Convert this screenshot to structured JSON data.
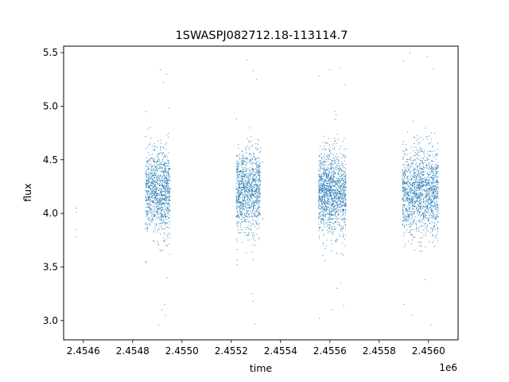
{
  "chart_data": {
    "type": "scatter",
    "title": "1SWASPJ082712.18-113114.7",
    "xlabel": "time",
    "ylabel": "flux",
    "x_offset_label": "1e6",
    "xlim": [
      2454520,
      2456120
    ],
    "ylim": [
      2.82,
      5.56
    ],
    "x_ticks": [
      2454600,
      2454800,
      2455000,
      2455200,
      2455400,
      2455600,
      2455800,
      2456000
    ],
    "x_tick_labels": [
      "2.4546",
      "2.4548",
      "2.4550",
      "2.4552",
      "2.4554",
      "2.4556",
      "2.4558",
      "2.4560"
    ],
    "y_ticks": [
      3.0,
      3.5,
      4.0,
      4.5,
      5.0,
      5.5
    ],
    "y_tick_labels": [
      "3.0",
      "3.5",
      "4.0",
      "4.5",
      "5.0",
      "5.5"
    ],
    "grid": false,
    "point_color": "#1f77b4",
    "series": [
      {
        "values_note": "",
        "points": [
          [
            2454572,
            4.05
          ],
          [
            2454572,
            3.85
          ],
          [
            2454572,
            3.78
          ],
          [
            2454572,
            4.01
          ],
          [
            2454854,
            4.95
          ],
          [
            2454853,
            3.55
          ],
          [
            2454858,
            4.45
          ],
          [
            2454860,
            3.9
          ],
          [
            2454880,
            4.32
          ],
          [
            2454890,
            4.1
          ],
          [
            2454900,
            4.62
          ],
          [
            2454905,
            3.7
          ],
          [
            2454915,
            4.2
          ],
          [
            2454920,
            4.55
          ],
          [
            2454928,
            3.82
          ],
          [
            2454935,
            4.4
          ],
          [
            2454940,
            4.15
          ],
          [
            2454945,
            4.71
          ],
          [
            2454950,
            3.62
          ],
          [
            2454906,
            2.96
          ],
          [
            2454912,
            5.34
          ],
          [
            2454930,
            3.15
          ],
          [
            2454918,
            3.1
          ],
          [
            2454925,
            5.22
          ],
          [
            2454938,
            5.3
          ],
          [
            2454933,
            3.05
          ],
          [
            2454948,
            4.98
          ],
          [
            2454940,
            3.4
          ],
          [
            2455221,
            4.88
          ],
          [
            2455223,
            3.52
          ],
          [
            2455230,
            4.45
          ],
          [
            2455240,
            3.85
          ],
          [
            2455250,
            4.25
          ],
          [
            2455260,
            4.6
          ],
          [
            2455268,
            3.75
          ],
          [
            2455275,
            4.12
          ],
          [
            2455285,
            4.5
          ],
          [
            2455290,
            3.9
          ],
          [
            2455295,
            4.3
          ],
          [
            2455300,
            4.65
          ],
          [
            2455265,
            5.43
          ],
          [
            2455282,
            3.25
          ],
          [
            2455290,
            5.33
          ],
          [
            2455296,
            2.97
          ],
          [
            2455302,
            5.25
          ],
          [
            2455288,
            3.18
          ],
          [
            2455328,
            4.48
          ],
          [
            2455328,
            3.95
          ],
          [
            2455556,
            5.28
          ],
          [
            2455557,
            3.02
          ],
          [
            2455562,
            4.55
          ],
          [
            2455575,
            3.8
          ],
          [
            2455585,
            4.2
          ],
          [
            2455595,
            4.7
          ],
          [
            2455605,
            3.65
          ],
          [
            2455615,
            4.35
          ],
          [
            2455625,
            4.1
          ],
          [
            2455640,
            4.6
          ],
          [
            2455650,
            3.72
          ],
          [
            2455658,
            4.25
          ],
          [
            2455600,
            5.34
          ],
          [
            2455610,
            3.1
          ],
          [
            2455640,
            5.36
          ],
          [
            2455655,
            3.14
          ],
          [
            2455662,
            5.2
          ],
          [
            2455630,
            3.3
          ],
          [
            2455645,
            3.35
          ],
          [
            2455620,
            4.95
          ],
          [
            2455898,
            5.42
          ],
          [
            2455900,
            3.15
          ],
          [
            2455910,
            4.5
          ],
          [
            2455920,
            3.82
          ],
          [
            2455935,
            4.22
          ],
          [
            2455950,
            4.68
          ],
          [
            2455965,
            3.7
          ],
          [
            2455975,
            4.35
          ],
          [
            2455990,
            4.1
          ],
          [
            2456005,
            4.58
          ],
          [
            2456015,
            3.85
          ],
          [
            2456030,
            4.28
          ],
          [
            2455925,
            5.5
          ],
          [
            2455935,
            3.05
          ],
          [
            2455995,
            5.46
          ],
          [
            2456010,
            2.96
          ],
          [
            2456020,
            5.35
          ],
          [
            2455985,
            3.38
          ],
          [
            2456040,
            4.0
          ],
          [
            2456035,
            4.42
          ]
        ],
        "clusters": [
          {
            "x_start": 2454852,
            "x_end": 2454952,
            "y_mean": 4.2,
            "y_sd": 0.19,
            "count": 1100
          },
          {
            "x_start": 2455220,
            "x_end": 2455318,
            "y_mean": 4.2,
            "y_sd": 0.19,
            "count": 1100
          },
          {
            "x_start": 2455554,
            "x_end": 2455666,
            "y_mean": 4.2,
            "y_sd": 0.19,
            "count": 1400
          },
          {
            "x_start": 2455894,
            "x_end": 2456040,
            "y_mean": 4.2,
            "y_sd": 0.2,
            "count": 1500
          }
        ]
      }
    ]
  }
}
